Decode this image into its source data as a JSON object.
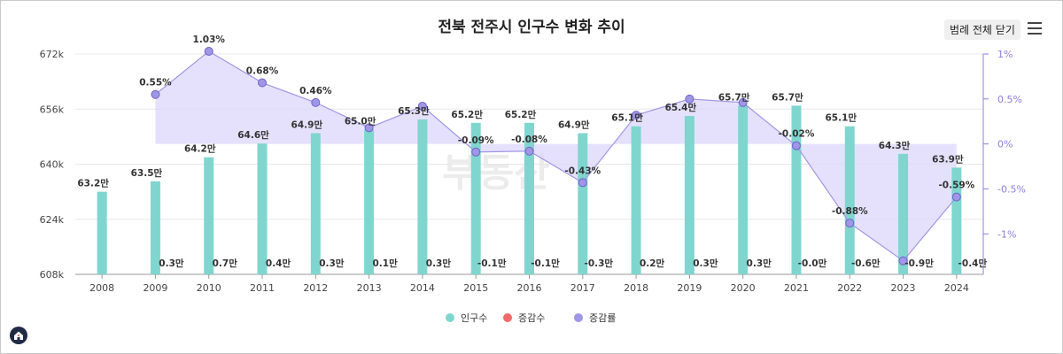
{
  "title": "전북 전주시 인구수 변화 추이",
  "legend_toggle_label": "범례 전체 닫기",
  "menu_icon": "hamburger-menu-icon",
  "home_icon": "home-logo-icon",
  "watermark": "부동산",
  "colors": {
    "population": "#7fd6cf",
    "change": "#ef6b6b",
    "rate": "#9f96e6",
    "rate_fill": "#dcd7fb"
  },
  "chart_data": {
    "type": "bar",
    "title": "전북 전주시 인구수 변화 추이",
    "categories": [
      "2008",
      "2009",
      "2010",
      "2011",
      "2012",
      "2013",
      "2014",
      "2015",
      "2016",
      "2017",
      "2018",
      "2019",
      "2020",
      "2021",
      "2022",
      "2023",
      "2024"
    ],
    "series": [
      {
        "name": "인구수",
        "type": "bar",
        "axis": "left",
        "values": [
          632000,
          635000,
          642000,
          646000,
          649000,
          650000,
          653000,
          652000,
          652000,
          649000,
          651000,
          654000,
          657000,
          657000,
          651000,
          643000,
          639000
        ],
        "labels": [
          "63.2만",
          "63.5만",
          "64.2만",
          "64.6만",
          "64.9만",
          "65.0만",
          "65.3만",
          "65.2만",
          "65.2만",
          "64.9만",
          "65.1만",
          "65.4만",
          "65.7만",
          "65.7만",
          "65.1만",
          "64.3만",
          "63.9만"
        ]
      },
      {
        "name": "증감수",
        "type": "bar",
        "axis": "left",
        "values": [
          null,
          3000,
          7000,
          4000,
          3000,
          1000,
          3000,
          -1000,
          -1000,
          -3000,
          2000,
          3000,
          3000,
          0,
          -6000,
          -9000,
          -4000
        ],
        "labels": [
          "",
          "0.3만",
          "0.7만",
          "0.4만",
          "0.3만",
          "0.1만",
          "0.3만",
          "-0.1만",
          "-0.1만",
          "-0.3만",
          "0.2만",
          "0.3만",
          "0.3만",
          "-0.0만",
          "-0.6만",
          "-0.9만",
          "-0.4만"
        ]
      },
      {
        "name": "증감률",
        "type": "area-line",
        "axis": "right",
        "values": [
          null,
          0.55,
          1.03,
          0.68,
          0.46,
          0.18,
          0.42,
          -0.09,
          -0.08,
          -0.43,
          0.32,
          0.5,
          0.46,
          -0.02,
          -0.88,
          -1.3,
          -0.59
        ],
        "labels": [
          "",
          "0.55%",
          "1.03%",
          "0.68%",
          "0.46%",
          "",
          "",
          "-0.09%",
          "-0.08%",
          "-0.43%",
          "",
          "",
          "",
          "-0.02%",
          "-0.88%",
          "",
          "-0.59%"
        ]
      }
    ],
    "left_axis": {
      "min": 608000,
      "max": 672000,
      "ticks": [
        608000,
        624000,
        640000,
        656000,
        672000
      ],
      "tick_labels": [
        "608k",
        "624k",
        "640k",
        "656k",
        "672k"
      ]
    },
    "right_axis": {
      "min": -1.45,
      "max": 1.0,
      "ticks": [
        1,
        0.5,
        0,
        -0.5,
        -1
      ],
      "tick_labels": [
        "1%",
        "0.5%",
        "0%",
        "-0.5%",
        "-1%"
      ]
    },
    "legend": [
      "인구수",
      "증감수",
      "증감률"
    ],
    "legend_position": "bottom-center"
  }
}
